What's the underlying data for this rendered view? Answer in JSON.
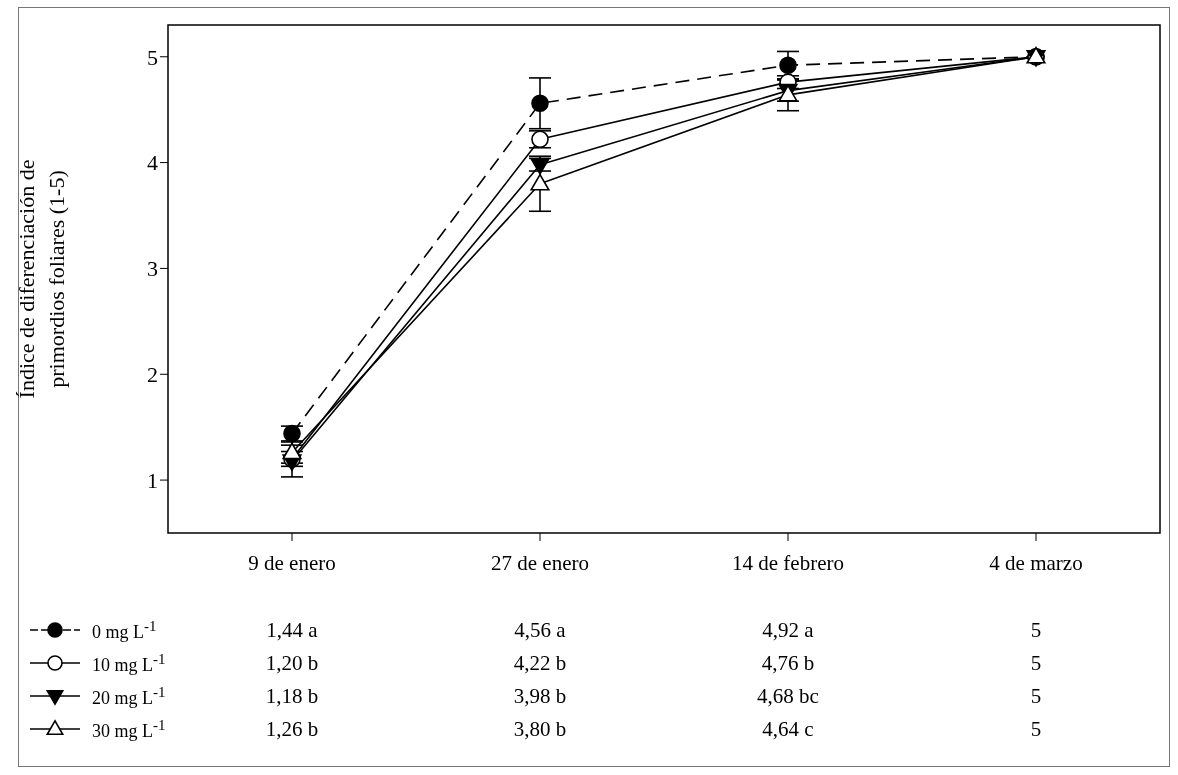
{
  "chart_data": {
    "type": "line",
    "ylabel": "Índice de diferenciación de primordios foliares (1-5)",
    "categories": [
      "9 de enero",
      "27 de enero",
      "14 de febrero",
      "4 de marzo"
    ],
    "ylim": [
      0.5,
      5.3
    ],
    "yticks": [
      1,
      2,
      3,
      4,
      5
    ],
    "grid": false,
    "legend": "bottom",
    "series": [
      {
        "name": "0 mg L$^{-1}$",
        "color": "#000000",
        "marker": "circle",
        "line_style": "dashed",
        "values": [
          1.44,
          4.56,
          4.92,
          5
        ],
        "errors": [
          0.07,
          0.24,
          0.13,
          null
        ],
        "value_labels": [
          "1,44 a",
          "4,56 a",
          "4,92 a",
          "5"
        ]
      },
      {
        "name": "10 mg L$^{-1}$",
        "color": "#000000",
        "marker": "circle-open",
        "line_style": "solid",
        "values": [
          1.2,
          4.22,
          4.76,
          5
        ],
        "errors": [
          0.07,
          0.08,
          0.06,
          null
        ],
        "value_labels": [
          "1,20 b",
          "4,22 b",
          "4,76 b",
          "5"
        ]
      },
      {
        "name": "20 mg L$^{-1}$",
        "color": "#000000",
        "marker": "triangle-down",
        "line_style": "solid",
        "values": [
          1.18,
          3.98,
          4.68,
          5
        ],
        "errors": [
          0.15,
          0.06,
          0.1,
          null
        ],
        "value_labels": [
          "1,18 b",
          "3,98 b",
          "4,68 bc",
          "5"
        ]
      },
      {
        "name": "30 mg L$^{-1}$",
        "color": "#000000",
        "marker": "triangle-open",
        "line_style": "solid",
        "values": [
          1.26,
          3.8,
          4.64,
          5
        ],
        "errors": [
          0.1,
          0.26,
          0.15,
          null
        ],
        "value_labels": [
          "1,26 b",
          "3,80 b",
          "4,64 c",
          "5"
        ]
      }
    ]
  }
}
